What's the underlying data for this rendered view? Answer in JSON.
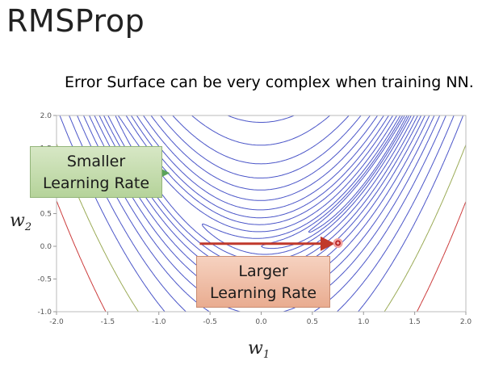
{
  "slide": {
    "title": "RMSProp",
    "subtitle": "Error Surface can be very complex when training NN."
  },
  "callouts": {
    "smaller": {
      "line1": "Smaller",
      "line2": "Learning Rate"
    },
    "larger": {
      "line1": "Larger",
      "line2": "Learning Rate"
    }
  },
  "chart_data": {
    "type": "contour",
    "xlabel": "w",
    "xlabel_subscript": "1",
    "ylabel": "w",
    "ylabel_subscript": "2",
    "xlim": [
      -2.0,
      2.0
    ],
    "ylim": [
      -1.0,
      2.0
    ],
    "x_ticks": [
      "-2.0",
      "-1.5",
      "-1.0",
      "-0.5",
      "0.0",
      "0.5",
      "1.0",
      "1.5",
      "2.0"
    ],
    "y_ticks": [
      "2.0",
      "1.5",
      "1.0",
      "0.5",
      "0.0",
      "-0.5",
      "-1.0"
    ],
    "grid": false,
    "function": "Rosenbrock-like valley: (a - w1)^2 + b*(w2 - w1^2)^2",
    "point": {
      "x": 0.75,
      "y": 0.05
    },
    "arrows": [
      {
        "label": "smaller-learning-rate",
        "direction": "right",
        "x_from": -2.0,
        "x_to": -1.0,
        "y": 1.12,
        "color": "#5aa35a"
      },
      {
        "label": "larger-learning-rate",
        "direction": "right",
        "x_from": -0.6,
        "x_to": 0.65,
        "y": 0.04,
        "color": "#c0392b"
      }
    ],
    "colors": {
      "contour_main": "#4a55c8",
      "contour_green": "#9aaa55",
      "contour_red": "#cc3b3b"
    }
  }
}
